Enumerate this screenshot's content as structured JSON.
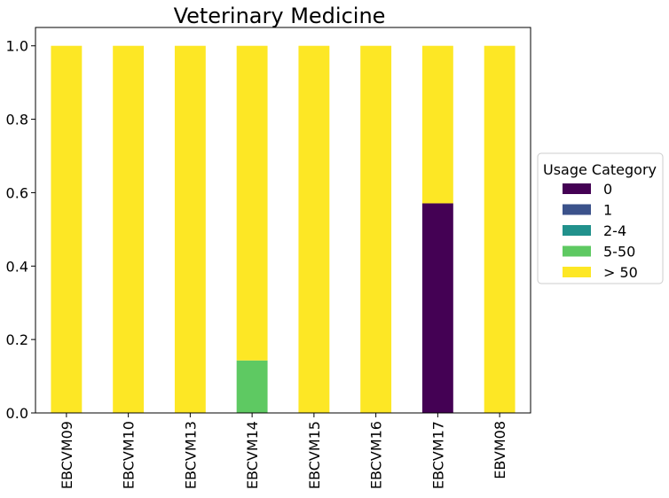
{
  "chart_data": {
    "type": "bar",
    "stacked": true,
    "title": "Veterinary Medicine",
    "xlabel": "",
    "ylabel": "",
    "categories": [
      "EBCVM09",
      "EBCVM10",
      "EBCVM13",
      "EBCVM14",
      "EBCVM15",
      "EBCVM16",
      "EBCVM17",
      "EBVM08"
    ],
    "ylim": [
      0,
      1.05
    ],
    "yticks": [
      "0.0",
      "0.2",
      "0.4",
      "0.6",
      "0.8",
      "1.0"
    ],
    "legend": {
      "title": "Usage Category",
      "placement": "center-right outside"
    },
    "series": [
      {
        "name": "0",
        "color": "#440154",
        "values": [
          0,
          0,
          0,
          0,
          0,
          0,
          0.571,
          0
        ]
      },
      {
        "name": "1",
        "color": "#3b528b",
        "values": [
          0,
          0,
          0,
          0,
          0,
          0,
          0,
          0
        ]
      },
      {
        "name": "2-4",
        "color": "#21918c",
        "values": [
          0,
          0,
          0,
          0,
          0,
          0,
          0,
          0
        ]
      },
      {
        "name": "5-50",
        "color": "#5ec962",
        "values": [
          0,
          0,
          0,
          0.143,
          0,
          0,
          0,
          0
        ]
      },
      {
        "name": "> 50",
        "color": "#fde725",
        "values": [
          1,
          1,
          1,
          0.857,
          1,
          1,
          0.429,
          1
        ]
      }
    ]
  }
}
